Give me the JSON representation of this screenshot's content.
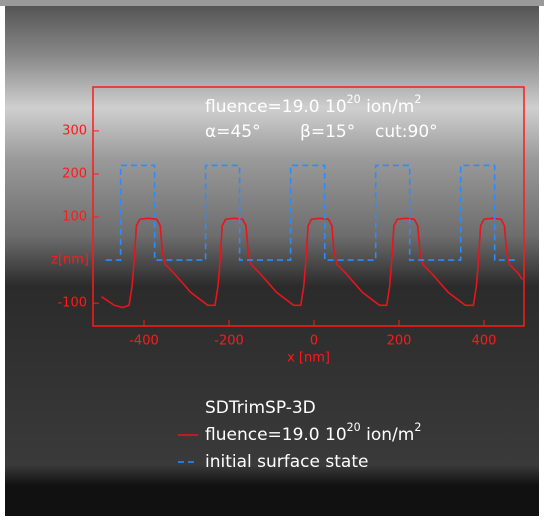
{
  "chart_data": {
    "type": "line",
    "annotations": [
      {
        "parts": [
          "fluence=19.0 10",
          "20",
          " ion/m",
          "2"
        ]
      },
      {
        "parts": [
          "α=45°",
          "β=15°",
          "cut:90°"
        ]
      }
    ],
    "xlabel": "x [nm]",
    "ylabel": "z[nm]",
    "xlim": [
      -520,
      494
    ],
    "ylim": [
      -153,
      402
    ],
    "xticks": [
      -400,
      -200,
      0,
      200,
      400
    ],
    "yticks": [
      -100,
      100,
      200,
      300
    ],
    "axis_color": "#ff1a1a",
    "legend_title": "SDTrimSP-3D",
    "series": [
      {
        "name": [
          "fluence=19.0 10",
          "20",
          " ion/m",
          "2"
        ],
        "color": "#e8141e",
        "dash": false,
        "x": [
          -500,
          -470,
          -450,
          -435,
          -428,
          -423,
          -418,
          -410,
          -390,
          -370,
          -362,
          -357,
          -350,
          -330,
          -290,
          -250,
          -233,
          -226,
          -221,
          -216,
          -208,
          -188,
          -168,
          -160,
          -155,
          -148,
          -128,
          -88,
          -48,
          -31,
          -24,
          -19,
          -14,
          -6,
          14,
          34,
          42,
          47,
          54,
          74,
          114,
          154,
          171,
          178,
          183,
          188,
          196,
          216,
          236,
          244,
          249,
          256,
          276,
          316,
          356,
          375,
          382,
          387,
          392,
          400,
          420,
          440,
          448,
          453,
          460,
          480,
          490
        ],
        "values": [
          -85,
          -105,
          -110,
          -105,
          -60,
          0,
          80,
          95,
          97,
          95,
          80,
          20,
          -10,
          -30,
          -75,
          -105,
          -105,
          -60,
          0,
          80,
          95,
          97,
          95,
          80,
          20,
          -10,
          -30,
          -75,
          -105,
          -105,
          -60,
          0,
          80,
          95,
          97,
          95,
          80,
          20,
          -10,
          -30,
          -75,
          -105,
          -105,
          -60,
          0,
          80,
          95,
          97,
          95,
          80,
          20,
          -10,
          -30,
          -75,
          -105,
          -105,
          -60,
          0,
          80,
          95,
          97,
          95,
          80,
          20,
          -10,
          -30,
          -45
        ]
      },
      {
        "name": [
          "initial surface state"
        ],
        "color": "#2b8cff",
        "dash": true,
        "x": [
          -490,
          -455,
          -455,
          -375,
          -375,
          -255,
          -255,
          -175,
          -175,
          -55,
          -55,
          25,
          25,
          145,
          145,
          225,
          225,
          345,
          345,
          425,
          425,
          480
        ],
        "values": [
          0,
          0,
          220,
          220,
          0,
          0,
          220,
          220,
          0,
          0,
          220,
          220,
          0,
          0,
          220,
          220,
          0,
          0,
          220,
          220,
          0,
          0
        ]
      }
    ]
  }
}
